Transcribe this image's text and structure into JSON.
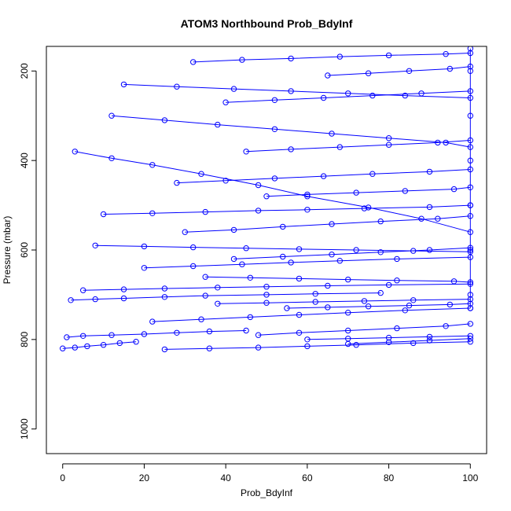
{
  "chart_data": {
    "type": "scatter",
    "title": "ATOM3 Northbound Prob_BdyInf",
    "xlabel": "Prob_BdyInf",
    "ylabel": "Pressure (mbar)",
    "xlim": [
      -4,
      104
    ],
    "ylim": [
      1055,
      145
    ],
    "y_reversed": true,
    "x_ticks": [
      0,
      20,
      40,
      60,
      80,
      100
    ],
    "y_ticks": [
      200,
      400,
      600,
      800,
      1000
    ],
    "grid": false,
    "legend": "none",
    "marker": "open-circle",
    "line_style": "points connected by lines",
    "color": "#0000ff",
    "series": [
      {
        "x": [
          0,
          3,
          6,
          10,
          14,
          18
        ],
        "y": [
          820,
          818,
          815,
          812,
          808,
          805
        ]
      },
      {
        "x": [
          1,
          5,
          12,
          20,
          28,
          36,
          45
        ],
        "y": [
          795,
          792,
          790,
          788,
          785,
          782,
          780
        ]
      },
      {
        "x": [
          2,
          8,
          15,
          25,
          35,
          50,
          62,
          78
        ],
        "y": [
          712,
          710,
          708,
          705,
          702,
          700,
          698,
          696
        ]
      },
      {
        "x": [
          3,
          12,
          22,
          34,
          48,
          60,
          75,
          88,
          100
        ],
        "y": [
          380,
          395,
          410,
          430,
          455,
          480,
          505,
          530,
          560
        ]
      },
      {
        "x": [
          5,
          15,
          25,
          38,
          50,
          65,
          80,
          100
        ],
        "y": [
          690,
          688,
          686,
          684,
          682,
          680,
          678,
          676
        ]
      },
      {
        "x": [
          8,
          20,
          32,
          45,
          58,
          72,
          86,
          100
        ],
        "y": [
          590,
          592,
          594,
          596,
          598,
          600,
          602,
          604
        ]
      },
      {
        "x": [
          10,
          22,
          35,
          48,
          60,
          74,
          90,
          100
        ],
        "y": [
          520,
          518,
          515,
          512,
          510,
          507,
          504,
          500
        ]
      },
      {
        "x": [
          12,
          25,
          38,
          52,
          66,
          80,
          94,
          100
        ],
        "y": [
          300,
          310,
          320,
          330,
          340,
          350,
          360,
          370
        ]
      },
      {
        "x": [
          15,
          28,
          42,
          56,
          70,
          84,
          100
        ],
        "y": [
          230,
          235,
          240,
          245,
          250,
          255,
          260
        ]
      },
      {
        "x": [
          20,
          32,
          44,
          56,
          68,
          82,
          100
        ],
        "y": [
          640,
          636,
          632,
          628,
          624,
          620,
          616
        ]
      },
      {
        "x": [
          22,
          34,
          46,
          58,
          70,
          84,
          100
        ],
        "y": [
          760,
          755,
          750,
          745,
          740,
          735,
          730
        ]
      },
      {
        "x": [
          25,
          36,
          48,
          60,
          72,
          86,
          100
        ],
        "y": [
          822,
          820,
          818,
          815,
          812,
          808,
          805
        ]
      },
      {
        "x": [
          28,
          40,
          52,
          64,
          76,
          90,
          100
        ],
        "y": [
          450,
          445,
          440,
          435,
          430,
          425,
          420
        ]
      },
      {
        "x": [
          30,
          42,
          54,
          66,
          78,
          92,
          100
        ],
        "y": [
          560,
          555,
          548,
          542,
          536,
          530,
          524
        ]
      },
      {
        "x": [
          32,
          44,
          56,
          68,
          80,
          94,
          100
        ],
        "y": [
          180,
          175,
          172,
          168,
          165,
          162,
          160
        ]
      },
      {
        "x": [
          35,
          46,
          58,
          70,
          82,
          96,
          100
        ],
        "y": [
          660,
          662,
          664,
          666,
          668,
          670,
          672
        ]
      },
      {
        "x": [
          38,
          50,
          62,
          74,
          86,
          100
        ],
        "y": [
          720,
          718,
          716,
          714,
          712,
          710
        ]
      },
      {
        "x": [
          40,
          52,
          64,
          76,
          88,
          100
        ],
        "y": [
          270,
          265,
          260,
          255,
          250,
          245
        ]
      },
      {
        "x": [
          42,
          54,
          66,
          78,
          90,
          100
        ],
        "y": [
          620,
          615,
          610,
          605,
          600,
          595
        ]
      },
      {
        "x": [
          45,
          56,
          68,
          80,
          92,
          100
        ],
        "y": [
          380,
          375,
          370,
          365,
          360,
          355
        ]
      },
      {
        "x": [
          48,
          58,
          70,
          82,
          94,
          100
        ],
        "y": [
          790,
          785,
          780,
          775,
          770,
          765
        ]
      },
      {
        "x": [
          50,
          60,
          72,
          84,
          96,
          100
        ],
        "y": [
          480,
          476,
          472,
          468,
          464,
          460
        ]
      },
      {
        "x": [
          55,
          65,
          75,
          85,
          95,
          100
        ],
        "y": [
          730,
          728,
          726,
          724,
          722,
          720
        ]
      },
      {
        "x": [
          60,
          70,
          80,
          90,
          100
        ],
        "y": [
          800,
          798,
          796,
          794,
          792
        ]
      },
      {
        "x": [
          65,
          75,
          85,
          95,
          100
        ],
        "y": [
          210,
          205,
          200,
          195,
          190
        ]
      },
      {
        "x": [
          70,
          80,
          90,
          100
        ],
        "y": [
          810,
          806,
          802,
          798
        ]
      },
      {
        "x": [
          100,
          100,
          100,
          100,
          100,
          100,
          100,
          100
        ],
        "y": [
          150,
          200,
          300,
          400,
          500,
          600,
          700,
          730
        ]
      }
    ]
  }
}
